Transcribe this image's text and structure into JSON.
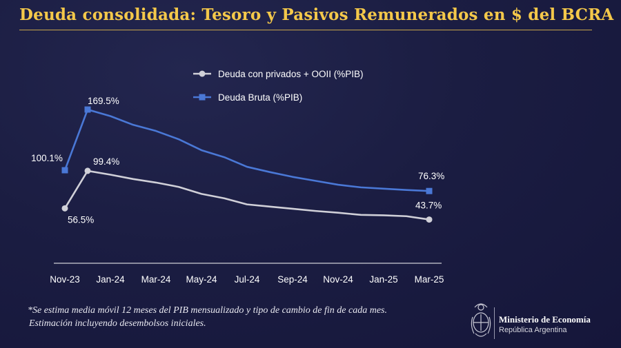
{
  "title": "Deuda consolidada: Tesoro y Pasivos Remunerados en $ del BCRA",
  "footnote": {
    "line1": "*Se estima media móvil 12 meses del PIB mensualizado y tipo de cambio de fin de cada mes.",
    "line2": "Estimación incluyendo desembolsos iniciales."
  },
  "ministry": {
    "name": "Ministerio de Economía",
    "country": "República Argentina"
  },
  "colors": {
    "title": "#f4c84a",
    "bruta": "#4a78d6",
    "privados": "#d0d0d8",
    "axis": "#d0d0d8",
    "text": "#ffffff"
  },
  "icons": [
    "argentina-coat-of-arms-icon"
  ],
  "chart_data": {
    "type": "line",
    "x": [
      "Nov-23",
      "Dec-23",
      "Jan-24",
      "Feb-24",
      "Mar-24",
      "Apr-24",
      "May-24",
      "Jun-24",
      "Jul-24",
      "Aug-24",
      "Sep-24",
      "Oct-24",
      "Nov-24",
      "Dec-24",
      "Jan-25",
      "Feb-25",
      "Mar-25"
    ],
    "x_tick_labels": [
      "Nov-23",
      "Jan-24",
      "Mar-24",
      "May-24",
      "Jul-24",
      "Sep-24",
      "Nov-24",
      "Jan-25",
      "Mar-25"
    ],
    "series": [
      {
        "name": "Deuda con privados + OOII (%PIB)",
        "marker": "circle",
        "values": [
          56.5,
          99.4,
          95.0,
          90.0,
          86.0,
          81.0,
          73.0,
          68.0,
          61.0,
          58.5,
          56.0,
          53.5,
          51.5,
          49.0,
          48.5,
          47.5,
          43.7
        ]
      },
      {
        "name": "Deuda Bruta (%PIB)",
        "marker": "square",
        "values": [
          100.1,
          169.5,
          162.0,
          152.0,
          145.0,
          135.5,
          123.0,
          115.0,
          104.0,
          98.0,
          92.5,
          88.0,
          83.5,
          80.5,
          79.0,
          77.5,
          76.3
        ]
      }
    ],
    "data_labels": [
      {
        "series": 1,
        "index": 0,
        "text": "100.1%"
      },
      {
        "series": 1,
        "index": 1,
        "text": "169.5%"
      },
      {
        "series": 1,
        "index": 16,
        "text": "76.3%"
      },
      {
        "series": 0,
        "index": 0,
        "text": "56.5%"
      },
      {
        "series": 0,
        "index": 1,
        "text": "99.4%"
      },
      {
        "series": 0,
        "index": 16,
        "text": "43.7%"
      }
    ],
    "ylim": [
      0,
      175
    ],
    "grid": false,
    "legend_position": "top-center",
    "xlabel": "",
    "ylabel": ""
  }
}
